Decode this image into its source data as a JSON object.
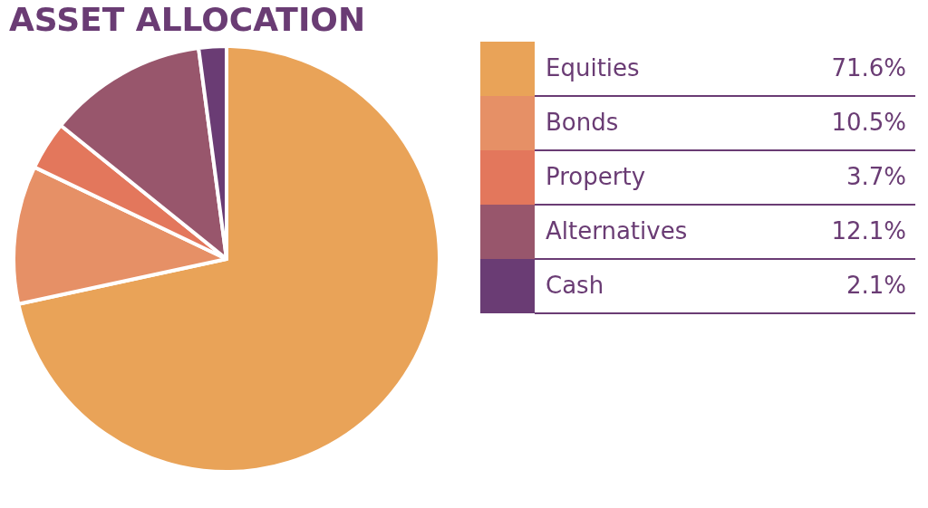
{
  "chart_data": {
    "type": "pie",
    "title": "ASSET ALLOCATION",
    "categories": [
      "Equities",
      "Bonds",
      "Property",
      "Alternatives",
      "Cash"
    ],
    "values": [
      71.6,
      10.5,
      3.7,
      12.1,
      2.1
    ],
    "colors": [
      "#e9a358",
      "#e69066",
      "#e3775c",
      "#98566c",
      "#6a3c74"
    ],
    "value_labels": [
      "71.6%",
      "10.5%",
      "3.7%",
      "12.1%",
      "2.1%"
    ],
    "legend": "right"
  }
}
